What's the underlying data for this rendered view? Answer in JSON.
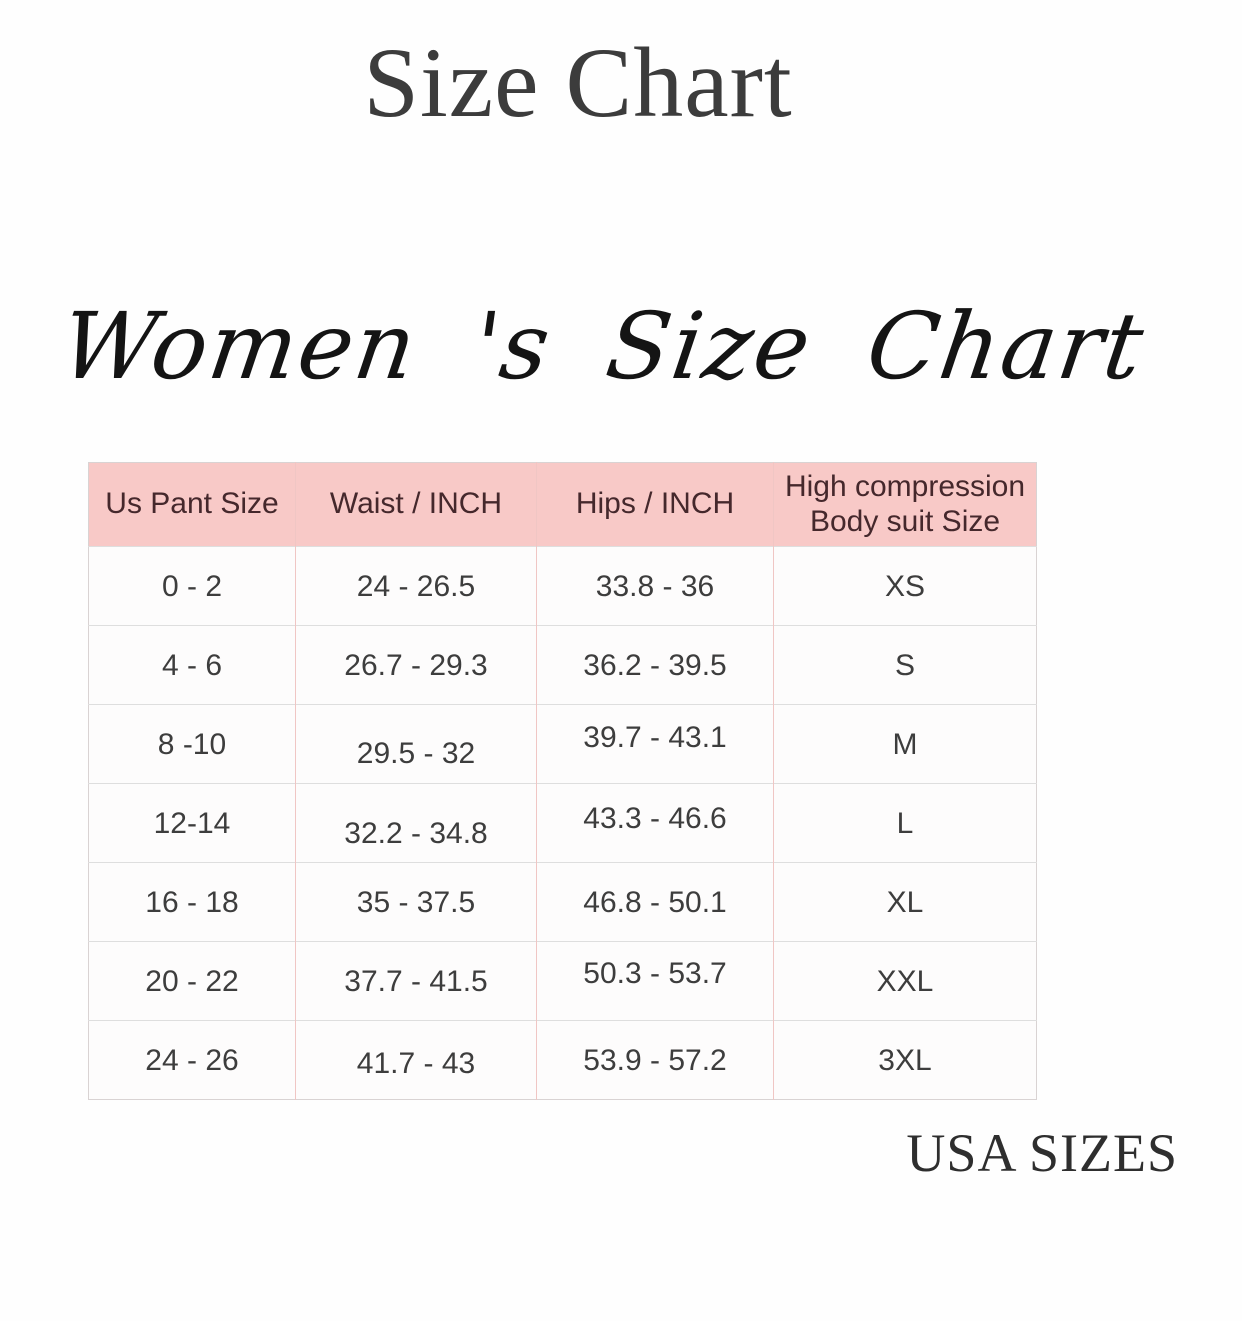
{
  "page": {
    "title": "Size Chart",
    "heading": "Women 's Size Chart",
    "footer": "USA SIZES"
  },
  "colors": {
    "header_bg": "#f8c9c7",
    "header_text": "#45282c",
    "cell_text": "#3d3d3d",
    "title_text": "#3c3c3c",
    "row_border": "#dedede",
    "col_border": "#f0c6c4",
    "outer_border": "#d9d3d3",
    "script_text": "#141414",
    "footer_text": "#2e2e2e"
  },
  "size_table": {
    "columns": [
      "Us Pant Size",
      "Waist / INCH",
      "Hips / INCH",
      "High compression Body suit Size"
    ],
    "rows": [
      [
        "0 - 2",
        "24 - 26.5",
        "33.8 - 36",
        "XS"
      ],
      [
        "4 - 6",
        "26.7 - 29.3",
        "36.2 - 39.5",
        "S"
      ],
      [
        "8 -10",
        "29.5 - 32",
        "39.7 - 43.1",
        "M"
      ],
      [
        "12-14",
        "32.2 - 34.8",
        "43.3 - 46.6",
        "L"
      ],
      [
        "16 - 18",
        "35 - 37.5",
        "46.8 - 50.1",
        "XL"
      ],
      [
        "20 - 22",
        "37.7 - 41.5",
        "50.3 - 53.7",
        "XXL"
      ],
      [
        "24 - 26",
        "41.7 - 43",
        "53.9 - 57.2",
        "3XL"
      ]
    ]
  }
}
